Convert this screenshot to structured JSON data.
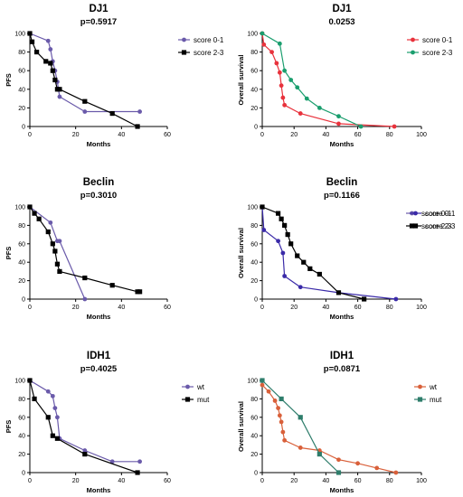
{
  "chart_data": [
    {
      "type": "line",
      "title": "DJ1",
      "subtitle": "p=0.5917",
      "xlabel": "Months",
      "ylabel": "PFS",
      "xlim": [
        0,
        60
      ],
      "ylim": [
        0,
        100
      ],
      "xticks": [
        "0",
        "20",
        "40",
        "60"
      ],
      "yticks": [
        "0",
        "20",
        "40",
        "60",
        "80",
        "100"
      ],
      "legend": "right",
      "series": [
        {
          "name": "score 0-1",
          "color": "#6a5aaa",
          "marker": "circle",
          "x": [
            0,
            8,
            9,
            10,
            11,
            12,
            13,
            24,
            48
          ],
          "y": [
            100,
            92,
            83,
            70,
            60,
            48,
            32,
            16,
            16
          ]
        },
        {
          "name": "score 2-3",
          "color": "#000000",
          "marker": "square",
          "x": [
            0,
            1,
            3,
            7,
            9,
            10,
            11,
            12,
            13,
            24,
            36,
            47
          ],
          "y": [
            100,
            91,
            80,
            70,
            68,
            60,
            50,
            40,
            40,
            27,
            14,
            0
          ]
        }
      ]
    },
    {
      "type": "line",
      "title": "DJ1",
      "subtitle": "0.0253",
      "xlabel": "Months",
      "ylabel": "Overall survival",
      "xlim": [
        0,
        100
      ],
      "ylim": [
        0,
        100
      ],
      "xticks": [
        "0",
        "20",
        "40",
        "60",
        "80",
        "100"
      ],
      "yticks": [
        "0",
        "20",
        "40",
        "60",
        "80",
        "100"
      ],
      "legend": "right",
      "series": [
        {
          "name": "score 0-1",
          "color": "#e8323c",
          "marker": "circle",
          "x": [
            0,
            1,
            6,
            9,
            11,
            12,
            13,
            14,
            24,
            48,
            83
          ],
          "y": [
            100,
            88,
            80,
            68,
            58,
            44,
            31,
            23,
            14,
            3,
            0
          ]
        },
        {
          "name": "score 2-3",
          "color": "#1a9e6e",
          "marker": "circle",
          "x": [
            0,
            11,
            14,
            18,
            22,
            28,
            36,
            48,
            62
          ],
          "y": [
            100,
            89,
            60,
            50,
            42,
            30,
            20,
            11,
            0
          ]
        }
      ]
    },
    {
      "type": "line",
      "title": "Beclin",
      "subtitle": "p=0.3010",
      "xlabel": "Months",
      "ylabel": "PFS",
      "xlim": [
        0,
        60
      ],
      "ylim": [
        0,
        100
      ],
      "xticks": [
        "0",
        "20",
        "40",
        "60"
      ],
      "yticks": [
        "0",
        "20",
        "40",
        "60",
        "80",
        "100"
      ],
      "legend": "right",
      "series": [
        {
          "name": "score 0-1",
          "color": "#6a5aaa",
          "marker": "circle",
          "x": [
            0,
            9,
            12,
            13,
            24
          ],
          "y": [
            100,
            83,
            63,
            63,
            0
          ]
        },
        {
          "name": "score 2-3",
          "color": "#000000",
          "marker": "square",
          "x": [
            0,
            2,
            4,
            8,
            10,
            11,
            12,
            13,
            24,
            36,
            47,
            48
          ],
          "y": [
            100,
            93,
            87,
            73,
            60,
            52,
            38,
            30,
            23,
            15,
            8,
            8
          ]
        }
      ]
    },
    {
      "type": "line",
      "title": "Beclin",
      "subtitle": "p=0.1166",
      "xlabel": "Months",
      "ylabel": "Overall survival",
      "xlim": [
        0,
        100
      ],
      "ylim": [
        0,
        100
      ],
      "xticks": [
        "0",
        "20",
        "40",
        "60",
        "80",
        "100"
      ],
      "yticks": [
        "0",
        "20",
        "40",
        "60",
        "80",
        "100"
      ],
      "legend": "right",
      "series": [
        {
          "name": "score 0-1",
          "color": "#3a2aa8",
          "marker": "circle",
          "x": [
            0,
            1,
            10,
            13,
            14,
            24,
            48,
            84
          ],
          "y": [
            100,
            75,
            63,
            50,
            25,
            13,
            7,
            0
          ]
        },
        {
          "name": "score 2-3",
          "color": "#000000",
          "marker": "square",
          "x": [
            0,
            10,
            12,
            14,
            16,
            18,
            22,
            26,
            30,
            36,
            48,
            64
          ],
          "y": [
            100,
            93,
            87,
            80,
            70,
            60,
            47,
            40,
            33,
            27,
            7,
            0
          ]
        }
      ]
    },
    {
      "type": "line",
      "title": "IDH1",
      "subtitle": "p=0.4025",
      "xlabel": "Months",
      "ylabel": "PFS",
      "xlim": [
        0,
        60
      ],
      "ylim": [
        0,
        100
      ],
      "xticks": [
        "0",
        "20",
        "40",
        "60"
      ],
      "yticks": [
        "0",
        "20",
        "40",
        "60",
        "80",
        "100"
      ],
      "legend": "right",
      "series": [
        {
          "name": "wt",
          "color": "#6a5aaa",
          "marker": "circle",
          "x": [
            0,
            8,
            10,
            11,
            12,
            13,
            24,
            36,
            48
          ],
          "y": [
            100,
            88,
            83,
            70,
            60,
            37,
            24,
            12,
            12
          ]
        },
        {
          "name": "mut",
          "color": "#000000",
          "marker": "square",
          "x": [
            0,
            2,
            8,
            10,
            12,
            24,
            47
          ],
          "y": [
            100,
            80,
            60,
            40,
            37,
            20,
            0
          ]
        }
      ]
    },
    {
      "type": "line",
      "title": "IDH1",
      "subtitle": "p=0.0871",
      "xlabel": "Months",
      "ylabel": "Overall survival",
      "xlim": [
        0,
        100
      ],
      "ylim": [
        0,
        100
      ],
      "xticks": [
        "0",
        "20",
        "40",
        "60",
        "80",
        "100"
      ],
      "yticks": [
        "0",
        "20",
        "40",
        "60",
        "80",
        "100"
      ],
      "legend": "right",
      "series": [
        {
          "name": "wt",
          "color": "#d9603a",
          "marker": "circle",
          "x": [
            0,
            4,
            8,
            10,
            11,
            12,
            13,
            14,
            24,
            36,
            48,
            60,
            72,
            84
          ],
          "y": [
            95,
            88,
            78,
            70,
            62,
            55,
            44,
            35,
            27,
            24,
            14,
            10,
            5,
            0
          ]
        },
        {
          "name": "mut",
          "color": "#2e7d6b",
          "marker": "square",
          "x": [
            0,
            12,
            24,
            36,
            48
          ],
          "y": [
            100,
            80,
            60,
            20,
            0
          ]
        }
      ]
    }
  ]
}
